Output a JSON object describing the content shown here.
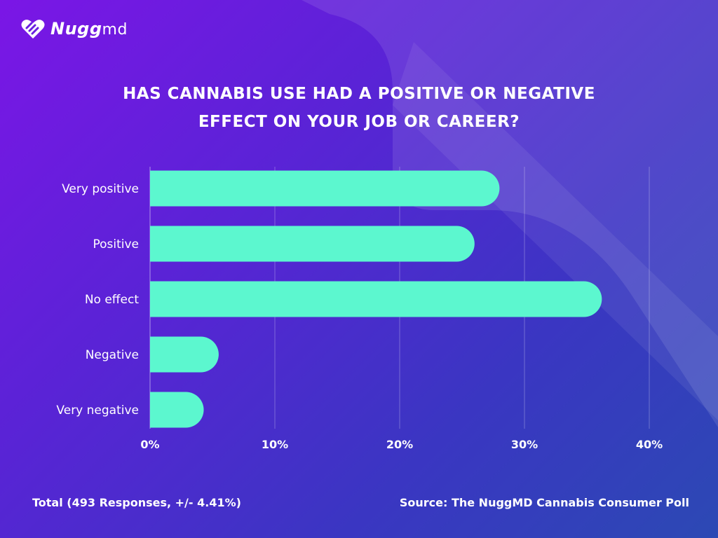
{
  "brand": {
    "name_main": "Nugg",
    "name_suffix": "md"
  },
  "title": {
    "line1": "HAS CANNABIS USE HAD A POSITIVE OR NEGATIVE",
    "line2": "EFFECT ON YOUR JOB OR CAREER?"
  },
  "footer": {
    "total": "Total (493 Responses, +/- 4.41%)",
    "source": "Source: The NuggMD Cannabis Consumer Poll"
  },
  "colors": {
    "bar": "#5cf7cf",
    "text": "#ffffff",
    "grid": "#ffffff"
  },
  "chart_data": {
    "type": "bar",
    "orientation": "horizontal",
    "title": "HAS CANNABIS USE HAD A POSITIVE OR NEGATIVE EFFECT ON YOUR JOB OR CAREER?",
    "categories": [
      "Very positive",
      "Positive",
      "No effect",
      "Negative",
      "Very negative"
    ],
    "values": [
      28,
      26,
      36.2,
      5.5,
      4.3
    ],
    "xlim": [
      0,
      40
    ],
    "xticks": [
      0,
      10,
      20,
      30,
      40
    ],
    "xtick_labels": [
      "0%",
      "10%",
      "20%",
      "30%",
      "40%"
    ],
    "xlabel": "",
    "ylabel": "",
    "grid": true
  }
}
